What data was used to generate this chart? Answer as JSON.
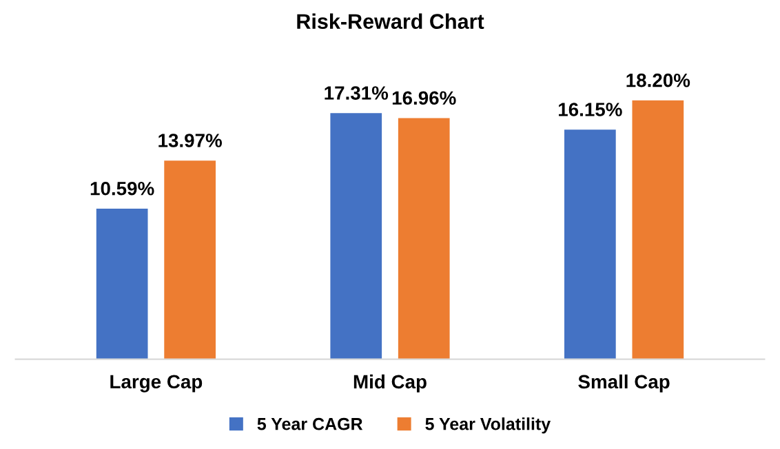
{
  "chart_data": {
    "type": "bar",
    "title": "Risk-Reward Chart",
    "categories": [
      "Large Cap",
      "Mid Cap",
      "Small Cap"
    ],
    "series": [
      {
        "name": "5 Year CAGR",
        "color": "#4472c4",
        "values": [
          10.59,
          17.31,
          16.15
        ],
        "value_labels": [
          "10.59%",
          "17.31%",
          "16.15%"
        ]
      },
      {
        "name": "5 Year Volatility",
        "color": "#ed7d31",
        "values": [
          13.97,
          16.96,
          18.2
        ],
        "value_labels": [
          "13.97%",
          "16.96%",
          "18.20%"
        ]
      }
    ],
    "legend": "bottom",
    "grid": false,
    "tick_labels": "x"
  }
}
